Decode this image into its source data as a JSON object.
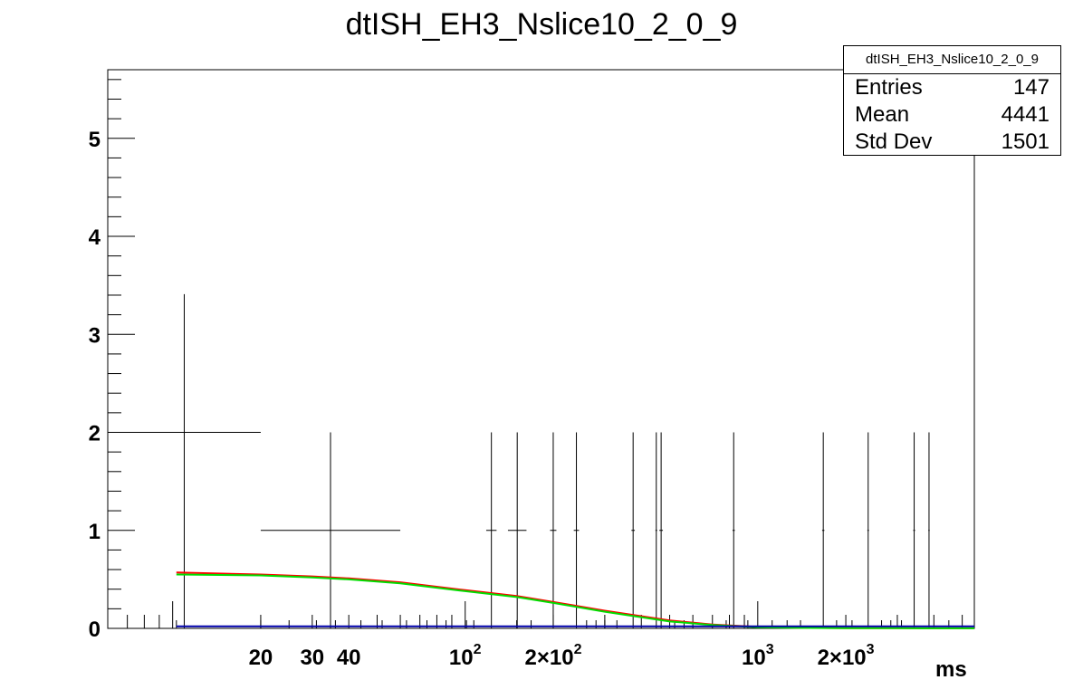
{
  "title": "dtISH_EH3_Nslice10_2_0_9",
  "stats": {
    "name": "dtISH_EH3_Nslice10_2_0_9",
    "rows": [
      {
        "label": "Entries",
        "value": "147"
      },
      {
        "label": "Mean",
        "value": "4441"
      },
      {
        "label": "Std Dev",
        "value": "1501"
      }
    ]
  },
  "chart_data": {
    "type": "histogram",
    "xscale": "log",
    "xlim": [
      6,
      5500
    ],
    "ylim": [
      0,
      5.7
    ],
    "xlabel": "ms",
    "ylabel": "",
    "y_tick_labels": [
      "0",
      "1",
      "2",
      "3",
      "4",
      "5"
    ],
    "x_tick_labels": [
      {
        "value": 20,
        "label": "20"
      },
      {
        "value": 30,
        "label": "30"
      },
      {
        "value": 40,
        "label": "40"
      },
      {
        "value": 100,
        "label": "10^2"
      },
      {
        "value": 200,
        "label": "2×10^2"
      },
      {
        "value": 1000,
        "label": "10^3"
      },
      {
        "value": 2000,
        "label": "2×10^3"
      }
    ],
    "points": [
      {
        "xlo": 6.0,
        "xhi": 20.0,
        "y": 2,
        "ehi": 3.41
      },
      {
        "xlo": 20.0,
        "xhi": 60.0,
        "y": 1,
        "ehi": 2.0
      },
      {
        "xlo": 118,
        "xhi": 128,
        "y": 1,
        "ehi": 2.0
      },
      {
        "xlo": 140,
        "xhi": 162,
        "y": 1,
        "ehi": 2.0
      },
      {
        "xlo": 195,
        "xhi": 205,
        "y": 1,
        "ehi": 2.0
      },
      {
        "xlo": 235,
        "xhi": 245,
        "y": 1,
        "ehi": 2.0
      },
      {
        "xlo": 370,
        "xhi": 380,
        "y": 1,
        "ehi": 2.0
      },
      {
        "xlo": 447,
        "xhi": 453,
        "y": 1,
        "ehi": 2.0
      },
      {
        "xlo": 461,
        "xhi": 474,
        "y": 1,
        "ehi": 2.0
      },
      {
        "xlo": 820,
        "xhi": 835,
        "y": 1,
        "ehi": 2.0
      },
      {
        "xlo": 1660,
        "xhi": 1690,
        "y": 1,
        "ehi": 2.0
      },
      {
        "xlo": 2370,
        "xhi": 2400,
        "y": 1,
        "ehi": 2.0
      },
      {
        "xlo": 3400,
        "xhi": 3450,
        "y": 1,
        "ehi": 2.0
      },
      {
        "xlo": 3830,
        "xhi": 3870,
        "y": 1,
        "ehi": 2.0
      }
    ],
    "zero_bin_edges": [
      10.3,
      20,
      25,
      31,
      36,
      44,
      52,
      63,
      74,
      86,
      101,
      107,
      150,
      168,
      260,
      280,
      300,
      330,
      520,
      560,
      780,
      925,
      1120,
      1260,
      1400,
      1860,
      2100,
      2650,
      2850,
      3100,
      4500
    ],
    "curves": [
      {
        "color": "#ff0000",
        "x": [
          10.3,
          20,
          30,
          40,
          60,
          100,
          150,
          200,
          300,
          500,
          700,
          1000,
          1500,
          2000,
          3000,
          5500
        ],
        "y": [
          0.57,
          0.55,
          0.53,
          0.51,
          0.47,
          0.39,
          0.33,
          0.27,
          0.18,
          0.08,
          0.04,
          0.015,
          0.006,
          0.003,
          0.002,
          0.001
        ]
      },
      {
        "color": "#00dd00",
        "x": [
          10.3,
          20,
          30,
          40,
          60,
          100,
          150,
          200,
          300,
          500,
          700,
          1000,
          1500,
          2000,
          3000,
          5500
        ],
        "y": [
          0.55,
          0.54,
          0.52,
          0.5,
          0.46,
          0.38,
          0.32,
          0.26,
          0.17,
          0.07,
          0.035,
          0.012,
          0.005,
          0.003,
          0.002,
          0.001
        ]
      },
      {
        "color": "#0000aa",
        "x": [
          10.3,
          5500
        ],
        "y": [
          0.02,
          0.02
        ]
      }
    ]
  }
}
